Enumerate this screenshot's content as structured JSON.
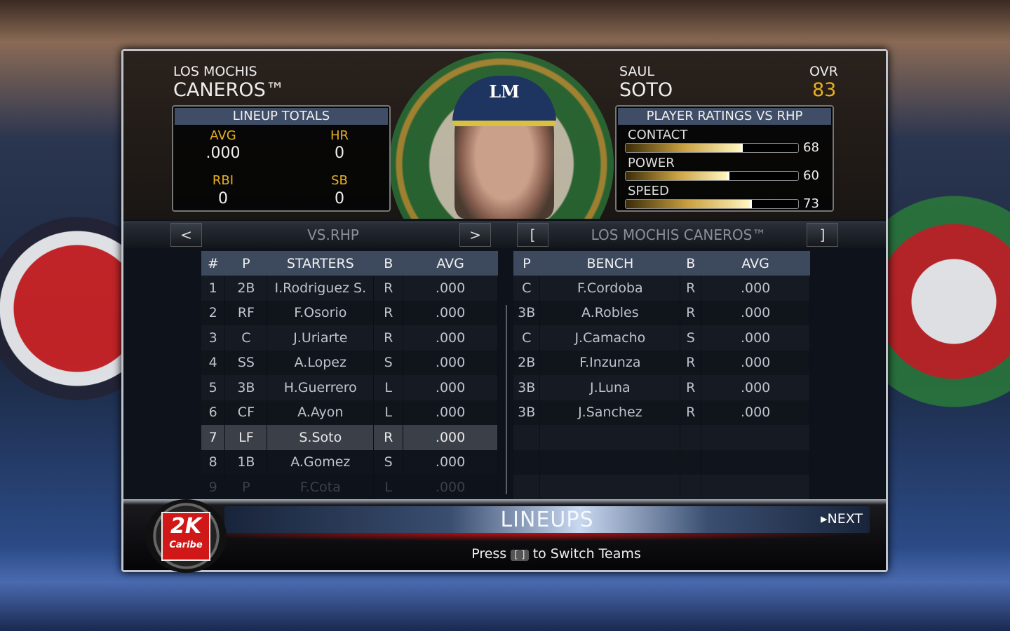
{
  "team": {
    "city": "LOS MOCHIS",
    "name": "CANEROS™"
  },
  "lineup_totals": {
    "title": "LINEUP TOTALS",
    "stats": [
      {
        "label": "AVG",
        "value": ".000"
      },
      {
        "label": "HR",
        "value": "0"
      },
      {
        "label": "RBI",
        "value": "0"
      },
      {
        "label": "SB",
        "value": "0"
      }
    ]
  },
  "player": {
    "first": "SAUL",
    "last": "SOTO",
    "ovr_label": "OVR",
    "ovr": "83",
    "cap_logo": "LM"
  },
  "ratings": {
    "title": "PLAYER RATINGS VS RHP",
    "items": [
      {
        "label": "CONTACT",
        "value": 68
      },
      {
        "label": "POWER",
        "value": 60
      },
      {
        "label": "SPEED",
        "value": 73
      }
    ]
  },
  "nav": {
    "prev": "<",
    "next": ">",
    "left_title": "VS.RHP",
    "team_prev": "[",
    "team_next": "]",
    "right_title": "LOS MOCHIS CANEROS™"
  },
  "starters": {
    "headers": [
      "#",
      "P",
      "STARTERS",
      "B",
      "AVG"
    ],
    "rows": [
      [
        "1",
        "2B",
        "I.Rodriguez S.",
        "R",
        ".000"
      ],
      [
        "2",
        "RF",
        "F.Osorio",
        "R",
        ".000"
      ],
      [
        "3",
        "C",
        "J.Uriarte",
        "R",
        ".000"
      ],
      [
        "4",
        "SS",
        "A.Lopez",
        "S",
        ".000"
      ],
      [
        "5",
        "3B",
        "H.Guerrero",
        "L",
        ".000"
      ],
      [
        "6",
        "CF",
        "A.Ayon",
        "L",
        ".000"
      ],
      [
        "7",
        "LF",
        "S.Soto",
        "R",
        ".000"
      ],
      [
        "8",
        "1B",
        "A.Gomez",
        "S",
        ".000"
      ],
      [
        "9",
        "P",
        "F.Cota",
        "L",
        ".000"
      ]
    ],
    "selected": 6
  },
  "bench": {
    "headers": [
      "P",
      "BENCH",
      "B",
      "AVG"
    ],
    "rows": [
      [
        "C",
        "F.Cordoba",
        "R",
        ".000"
      ],
      [
        "3B",
        "A.Robles",
        "R",
        ".000"
      ],
      [
        "C",
        "J.Camacho",
        "S",
        ".000"
      ],
      [
        "2B",
        "F.Inzunza",
        "R",
        ".000"
      ],
      [
        "3B",
        "J.Luna",
        "R",
        ".000"
      ],
      [
        "3B",
        "J.Sanchez",
        "R",
        ".000"
      ]
    ]
  },
  "footer": {
    "title": "LINEUPS",
    "next": "NEXT",
    "hint_pre": "Press",
    "hint_keys": "[ ]",
    "hint_post": "to Switch Teams",
    "logo": "2K Caribe"
  },
  "colors": {
    "accent": "#e9b020",
    "header_row": "#3d4a5e"
  }
}
